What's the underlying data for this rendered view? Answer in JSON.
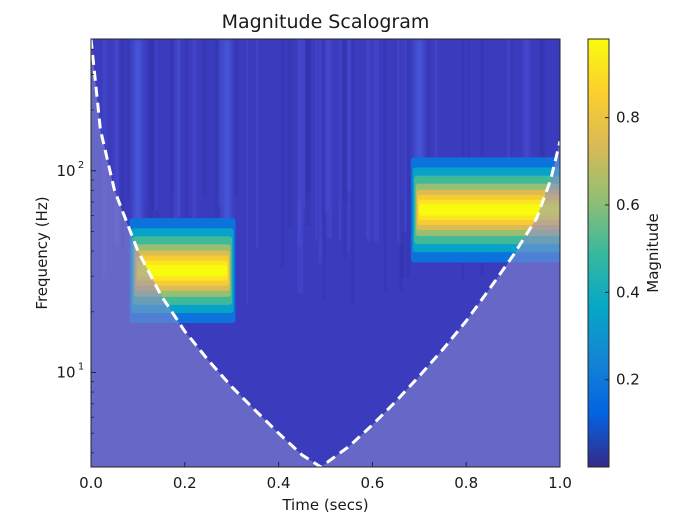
{
  "chart_data": {
    "type": "heatmap",
    "title": "Magnitude Scalogram",
    "xlabel": "Time (secs)",
    "ylabel": "Frequency (Hz)",
    "xlim": [
      0.0,
      1.0
    ],
    "y_scale": "log",
    "ylim": [
      3.4,
      450
    ],
    "x_ticks": [
      {
        "value": 0.0,
        "label": "0.0"
      },
      {
        "value": 0.2,
        "label": "0.2"
      },
      {
        "value": 0.4,
        "label": "0.4"
      },
      {
        "value": 0.6,
        "label": "0.6"
      },
      {
        "value": 0.8,
        "label": "0.8"
      },
      {
        "value": 1.0,
        "label": "1.0"
      }
    ],
    "y_ticks": [
      {
        "value": 10,
        "base": "10",
        "exp": "1"
      },
      {
        "value": 100,
        "base": "10",
        "exp": "2"
      }
    ],
    "components": [
      {
        "t_start": 0.1,
        "t_end": 0.29,
        "frequency_hz": 32,
        "peak_magnitude": 0.98
      },
      {
        "t_start": 0.7,
        "t_end": 1.0,
        "frequency_hz": 64,
        "peak_magnitude": 0.98
      }
    ],
    "background_magnitude": 0.05,
    "cone_of_influence": {
      "style": "white dashed",
      "points": [
        [
          0.0,
          450
        ],
        [
          0.02,
          160
        ],
        [
          0.05,
          80
        ],
        [
          0.1,
          40
        ],
        [
          0.15,
          24
        ],
        [
          0.2,
          16
        ],
        [
          0.25,
          11.5
        ],
        [
          0.3,
          8.5
        ],
        [
          0.35,
          6.5
        ],
        [
          0.4,
          5
        ],
        [
          0.45,
          3.9
        ],
        [
          0.49,
          3.4
        ],
        [
          0.55,
          4.3
        ],
        [
          0.6,
          5.5
        ],
        [
          0.65,
          7.2
        ],
        [
          0.7,
          9.6
        ],
        [
          0.75,
          13
        ],
        [
          0.8,
          18
        ],
        [
          0.85,
          26
        ],
        [
          0.9,
          38
        ],
        [
          0.95,
          58
        ],
        [
          0.98,
          90
        ],
        [
          1.0,
          140
        ]
      ]
    },
    "colorbar": {
      "label": "Magnitude",
      "colormap": "parula",
      "range": [
        0.0,
        0.98
      ],
      "ticks": [
        {
          "value": 0.2,
          "label": "0.2"
        },
        {
          "value": 0.4,
          "label": "0.4"
        },
        {
          "value": 0.6,
          "label": "0.6"
        },
        {
          "value": 0.8,
          "label": "0.8"
        }
      ],
      "colors": [
        "#352a87",
        "#0363e1",
        "#1485d4",
        "#06a7c6",
        "#38b99e",
        "#92bf73",
        "#d9ba56",
        "#fcce2e",
        "#f9fb0e"
      ]
    },
    "shade_color": "#8a8ad0"
  }
}
